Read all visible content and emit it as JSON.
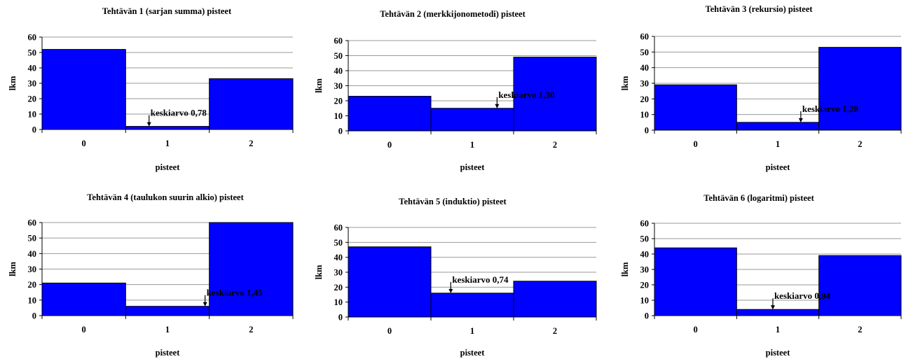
{
  "chart_data": [
    {
      "type": "bar",
      "title": "Tehtävän 1 (sarjan summa) pisteet",
      "categories": [
        "0",
        "1",
        "2"
      ],
      "values": [
        52,
        2,
        33
      ],
      "xlabel": "pisteet",
      "ylabel": "lkm",
      "ylim": [
        0,
        60
      ],
      "yticks": [
        "0",
        "10",
        "20",
        "30",
        "40",
        "50",
        "60"
      ],
      "grid": true,
      "bar_color": "#0000ff",
      "annotation": {
        "text": "keskiarvo 0,78",
        "x": 0.78
      }
    },
    {
      "type": "bar",
      "title": "Tehtävän 2 (merkkijonometodi) pisteet",
      "categories": [
        "0",
        "1",
        "2"
      ],
      "values": [
        23,
        15,
        49
      ],
      "xlabel": "pisteet",
      "ylabel": "lkm",
      "ylim": [
        0,
        60
      ],
      "yticks": [
        "0",
        "10",
        "20",
        "30",
        "40",
        "50",
        "60"
      ],
      "grid": true,
      "bar_color": "#0000ff",
      "annotation": {
        "text": "keskiarvo 1,30",
        "x": 1.3
      }
    },
    {
      "type": "bar",
      "title": "Tehtävän 3 (rekursio) pisteet",
      "categories": [
        "0",
        "1",
        "2"
      ],
      "values": [
        29,
        5,
        53
      ],
      "xlabel": "pisteet",
      "ylabel": "lkm",
      "ylim": [
        0,
        60
      ],
      "yticks": [
        "0",
        "10",
        "20",
        "30",
        "40",
        "50",
        "60"
      ],
      "grid": true,
      "bar_color": "#0000ff",
      "annotation": {
        "text": "keskiarvo 1,28",
        "x": 1.28
      }
    },
    {
      "type": "bar",
      "title": "Tehtävän 4 (taulukon suurin alkio) pisteet",
      "categories": [
        "0",
        "1",
        "2"
      ],
      "values": [
        21,
        6,
        60
      ],
      "xlabel": "pisteet",
      "ylabel": "lkm",
      "ylim": [
        0,
        60
      ],
      "yticks": [
        "0",
        "10",
        "20",
        "30",
        "40",
        "50",
        "60"
      ],
      "grid": true,
      "bar_color": "#0000ff",
      "annotation": {
        "text": "keskiarvo 1,45",
        "x": 1.45
      }
    },
    {
      "type": "bar",
      "title": "Tehtävän 5 (induktio) pisteet",
      "categories": [
        "0",
        "1",
        "2"
      ],
      "values": [
        47,
        16,
        24
      ],
      "xlabel": "pisteet",
      "ylabel": "lkm",
      "ylim": [
        0,
        60
      ],
      "yticks": [
        "0",
        "10",
        "20",
        "30",
        "40",
        "50",
        "60"
      ],
      "grid": true,
      "bar_color": "#0000ff",
      "annotation": {
        "text": "keskiarvo 0,74",
        "x": 0.74
      }
    },
    {
      "type": "bar",
      "title": "Tehtävän 6 (logaritmi) pisteet",
      "categories": [
        "0",
        "1",
        "2"
      ],
      "values": [
        44,
        4,
        39
      ],
      "xlabel": "pisteet",
      "ylabel": "lkm",
      "ylim": [
        0,
        60
      ],
      "yticks": [
        "0",
        "10",
        "20",
        "30",
        "40",
        "50",
        "60"
      ],
      "grid": true,
      "bar_color": "#0000ff",
      "annotation": {
        "text": "keskiarvo 0,94",
        "x": 0.94
      }
    }
  ]
}
